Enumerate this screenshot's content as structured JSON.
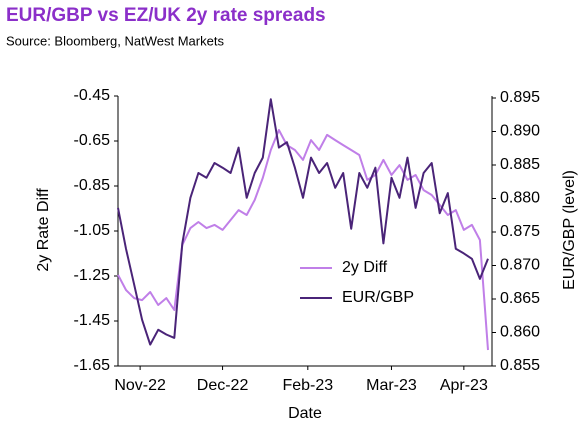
{
  "chart_data": {
    "type": "line",
    "title": "EUR/GBP vs EZ/UK 2y rate spreads",
    "subtitle": "Source:  Bloomberg, NatWest Markets",
    "xlabel": "Date",
    "ylabel": "2y Rate Diff",
    "y2label": "EUR/GBP (level)",
    "x": [
      0,
      1,
      2,
      3,
      4,
      5,
      6,
      7,
      8,
      9,
      10,
      11,
      12,
      13,
      14,
      15,
      16,
      17,
      18,
      19,
      20,
      21,
      22,
      23,
      24,
      25,
      26,
      27,
      28,
      29,
      30,
      31,
      32,
      33,
      34,
      35,
      36,
      37,
      38,
      39,
      40,
      41,
      42,
      43,
      44,
      45,
      46
    ],
    "xlim": [
      0,
      46.5
    ],
    "xticks": [
      {
        "value": 2.75,
        "label": "Nov-22"
      },
      {
        "value": 13,
        "label": "Dec-22"
      },
      {
        "value": 23.6,
        "label": "Feb-23"
      },
      {
        "value": 34,
        "label": "Mar-23"
      },
      {
        "value": 43,
        "label": "Apr-23"
      }
    ],
    "ylim": [
      -1.65,
      -0.45
    ],
    "yticks": [
      -0.45,
      -0.65,
      -0.85,
      -1.05,
      -1.25,
      -1.45,
      -1.65
    ],
    "y2lim": [
      0.855,
      0.8953
    ],
    "y2ticks": [
      0.895,
      {
        "value": 0.89,
        "label": "0.890"
      },
      0.885,
      {
        "value": 0.88,
        "label": "0.880"
      },
      0.875,
      {
        "value": 0.87,
        "label": "0.870"
      },
      0.865,
      {
        "value": 0.86,
        "label": "0.860"
      },
      0.855
    ],
    "grid": false,
    "legend": "lower-right",
    "series": [
      {
        "name": "2y Diff",
        "color": "#c07fe8",
        "values": [
          -1.245,
          -1.312,
          -1.348,
          -1.357,
          -1.321,
          -1.379,
          -1.348,
          -1.401,
          -1.112,
          -1.037,
          -1.01,
          -1.037,
          -1.023,
          -1.045,
          -1.001,
          -0.957,
          -0.979,
          -0.912,
          -0.814,
          -0.69,
          -0.601,
          -0.668,
          -0.69,
          -0.734,
          -0.646,
          -0.69,
          -0.623,
          -0.646,
          -0.668,
          -0.69,
          -0.712,
          -0.823,
          -0.801,
          -0.734,
          -0.801,
          -0.757,
          -0.823,
          -0.801,
          -0.868,
          -0.89,
          -0.934,
          -0.979,
          -0.957,
          -1.045,
          -1.023,
          -1.09,
          -1.579
        ]
      },
      {
        "name": "EUR/GBP",
        "color": "#4a2478",
        "axis": "y2",
        "values": [
          0.8786,
          0.8725,
          0.8672,
          0.8619,
          0.8582,
          0.8604,
          0.8597,
          0.8592,
          0.8733,
          0.8801,
          0.8838,
          0.8831,
          0.8853,
          0.8846,
          0.8838,
          0.8876,
          0.8801,
          0.8838,
          0.8861,
          0.8948,
          0.8876,
          0.8884,
          0.8846,
          0.8801,
          0.8861,
          0.8838,
          0.8853,
          0.8816,
          0.8838,
          0.8755,
          0.8838,
          0.8816,
          0.8846,
          0.8733,
          0.8831,
          0.8801,
          0.8861,
          0.8786,
          0.8838,
          0.8853,
          0.8778,
          0.8808,
          0.8725,
          0.8718,
          0.871,
          0.868,
          0.871
        ]
      }
    ]
  }
}
